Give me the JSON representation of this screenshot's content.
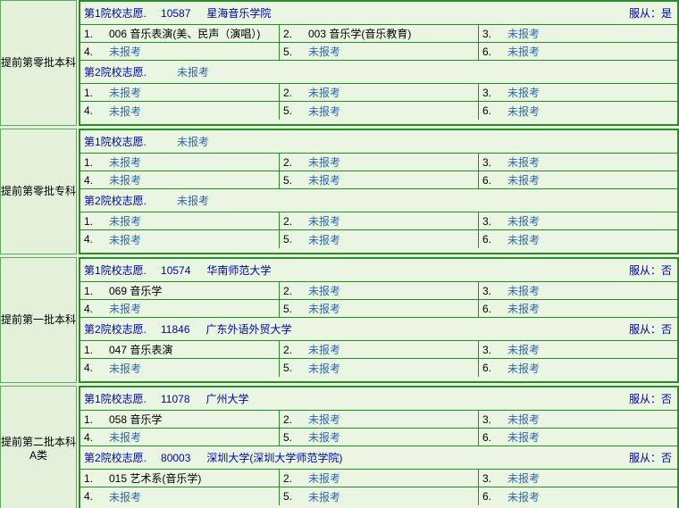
{
  "palette": {
    "page_bg": "#E3F1DB",
    "cell_bg": "#E9F7E2",
    "border_green": "#2C8A2C",
    "header_navy": "#0000AA",
    "unreported_blue": "#3366AA",
    "text_black": "#000000"
  },
  "unreported_text": "未报考",
  "sections": [
    {
      "label": "提前第零批本科",
      "blocks": [
        {
          "title": "第1院校志愿.",
          "code": "10587",
          "name": "星海音乐学院",
          "obey": "服从：是",
          "majors": [
            {
              "num": "1.",
              "text": "006 音乐表演(美、民声（演唱）)"
            },
            {
              "num": "2.",
              "text": "003 音乐学(音乐教育)"
            },
            {
              "num": "3.",
              "text": "未报考"
            },
            {
              "num": "4.",
              "text": "未报考"
            },
            {
              "num": "5.",
              "text": "未报考"
            },
            {
              "num": "6.",
              "text": "未报考"
            }
          ]
        },
        {
          "title": "第2院校志愿.",
          "code": "",
          "name": "未报考",
          "obey": "",
          "majors": [
            {
              "num": "1.",
              "text": "未报考"
            },
            {
              "num": "2.",
              "text": "未报考"
            },
            {
              "num": "3.",
              "text": "未报考"
            },
            {
              "num": "4.",
              "text": "未报考"
            },
            {
              "num": "5.",
              "text": "未报考"
            },
            {
              "num": "6.",
              "text": "未报考"
            }
          ]
        }
      ]
    },
    {
      "label": "提前第零批专科",
      "blocks": [
        {
          "title": "第1院校志愿.",
          "code": "",
          "name": "未报考",
          "obey": "",
          "majors": [
            {
              "num": "1.",
              "text": "未报考"
            },
            {
              "num": "2.",
              "text": "未报考"
            },
            {
              "num": "3.",
              "text": "未报考"
            },
            {
              "num": "4.",
              "text": "未报考"
            },
            {
              "num": "5.",
              "text": "未报考"
            },
            {
              "num": "6.",
              "text": "未报考"
            }
          ]
        },
        {
          "title": "第2院校志愿.",
          "code": "",
          "name": "未报考",
          "obey": "",
          "majors": [
            {
              "num": "1.",
              "text": "未报考"
            },
            {
              "num": "2.",
              "text": "未报考"
            },
            {
              "num": "3.",
              "text": "未报考"
            },
            {
              "num": "4.",
              "text": "未报考"
            },
            {
              "num": "5.",
              "text": "未报考"
            },
            {
              "num": "6.",
              "text": "未报考"
            }
          ]
        }
      ]
    },
    {
      "label": "提前第一批本科",
      "blocks": [
        {
          "title": "第1院校志愿.",
          "code": "10574",
          "name": "华南师范大学",
          "obey": "服从：否",
          "majors": [
            {
              "num": "1.",
              "text": "069 音乐学"
            },
            {
              "num": "2.",
              "text": "未报考"
            },
            {
              "num": "3.",
              "text": "未报考"
            },
            {
              "num": "4.",
              "text": "未报考"
            },
            {
              "num": "5.",
              "text": "未报考"
            },
            {
              "num": "6.",
              "text": "未报考"
            }
          ]
        },
        {
          "title": "第2院校志愿.",
          "code": "11846",
          "name": "广东外语外贸大学",
          "obey": "服从：否",
          "majors": [
            {
              "num": "1.",
              "text": "047 音乐表演"
            },
            {
              "num": "2.",
              "text": "未报考"
            },
            {
              "num": "3.",
              "text": "未报考"
            },
            {
              "num": "4.",
              "text": "未报考"
            },
            {
              "num": "5.",
              "text": "未报考"
            },
            {
              "num": "6.",
              "text": "未报考"
            }
          ]
        }
      ]
    },
    {
      "label": "提前第二批本科A类",
      "blocks": [
        {
          "title": "第1院校志愿.",
          "code": "11078",
          "name": "广州大学",
          "obey": "服从：否",
          "majors": [
            {
              "num": "1.",
              "text": "058 音乐学"
            },
            {
              "num": "2.",
              "text": "未报考"
            },
            {
              "num": "3.",
              "text": "未报考"
            },
            {
              "num": "4.",
              "text": "未报考"
            },
            {
              "num": "5.",
              "text": "未报考"
            },
            {
              "num": "6.",
              "text": "未报考"
            }
          ]
        },
        {
          "title": "第2院校志愿.",
          "code": "80003",
          "name": "深圳大学(深圳大学师范学院)",
          "obey": "服从：否",
          "majors": [
            {
              "num": "1.",
              "text": "015 艺术系(音乐学)"
            },
            {
              "num": "2.",
              "text": "未报考"
            },
            {
              "num": "3.",
              "text": "未报考"
            },
            {
              "num": "4.",
              "text": "未报考"
            },
            {
              "num": "5.",
              "text": "未报考"
            },
            {
              "num": "6.",
              "text": "未报考"
            }
          ]
        }
      ]
    }
  ]
}
